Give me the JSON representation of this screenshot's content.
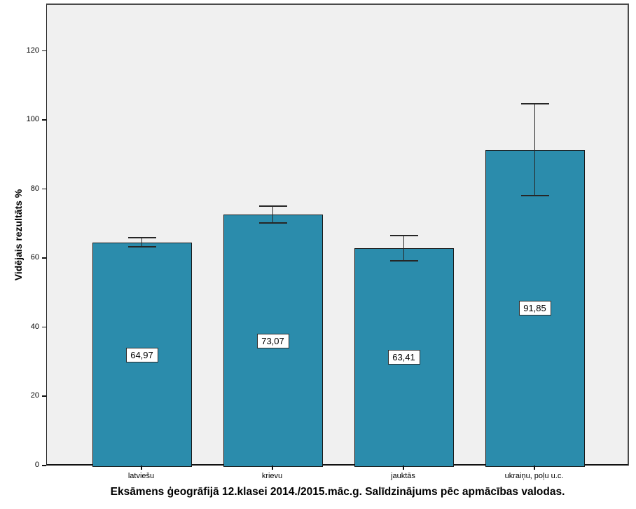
{
  "chart": {
    "page_bg": "#ffffff",
    "plot_bg": "#f0f0f0",
    "bar_fill": "#2b8cac",
    "bar_stroke": "#1a1a1a",
    "error_stroke": "#262626",
    "frame_stroke": "#4a4a4a"
  },
  "chart_data": {
    "type": "bar",
    "title": "Eksāmens ģeogrāfijā 12.klasei 2014./2015.māc.g. Salīdzinājums pēc apmācības valodas.",
    "ylabel": "Vidējais rezultāts %",
    "xlabel": "",
    "categories": [
      "latviešu",
      "krievu",
      "jauktās",
      "ukraiņu, poļu u.c."
    ],
    "values": [
      64.97,
      73.07,
      63.41,
      91.85
    ],
    "value_labels": [
      "64,97",
      "73,07",
      "63,41",
      "91,85"
    ],
    "error_upper": [
      66.4,
      75.5,
      67.0,
      105.2
    ],
    "error_lower": [
      63.8,
      70.7,
      59.7,
      78.6
    ],
    "yticks": [
      0,
      20,
      40,
      60,
      80,
      100,
      120
    ],
    "ylim": [
      0,
      133.8
    ],
    "grid": false,
    "legend": null,
    "decimal_separator": ","
  }
}
